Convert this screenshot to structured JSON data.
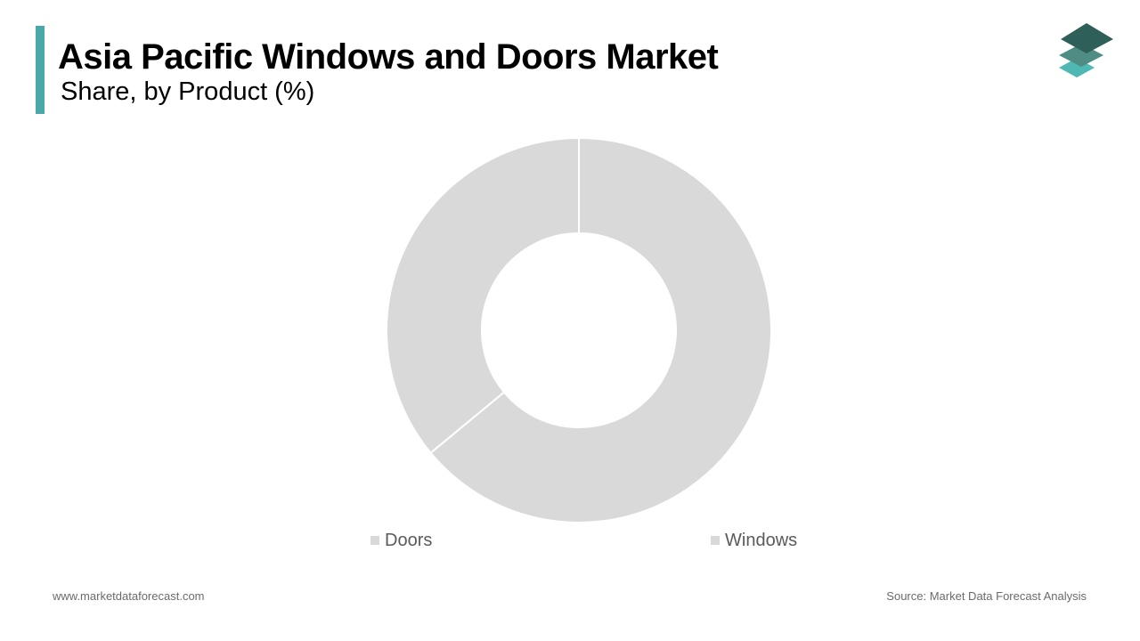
{
  "header": {
    "title": "Asia Pacific Windows and Doors Market",
    "subtitle": "Share, by Product (%)",
    "accent_color": "#4aa8a8"
  },
  "logo": {
    "icon": "stacked-layers-icon",
    "colors": [
      "#2f5f59",
      "#4e8c84",
      "#4fb8b5"
    ]
  },
  "chart_data": {
    "type": "pie",
    "donut": true,
    "categories": [
      "Doors",
      "Windows"
    ],
    "values": [
      36,
      64
    ],
    "colors": [
      "#d9d9d9",
      "#d9d9d9"
    ],
    "data_labels": false,
    "legend_position": "bottom"
  },
  "footer": {
    "website": "www.marketdataforecast.com",
    "source": "Source: Market Data Forecast Analysis"
  }
}
